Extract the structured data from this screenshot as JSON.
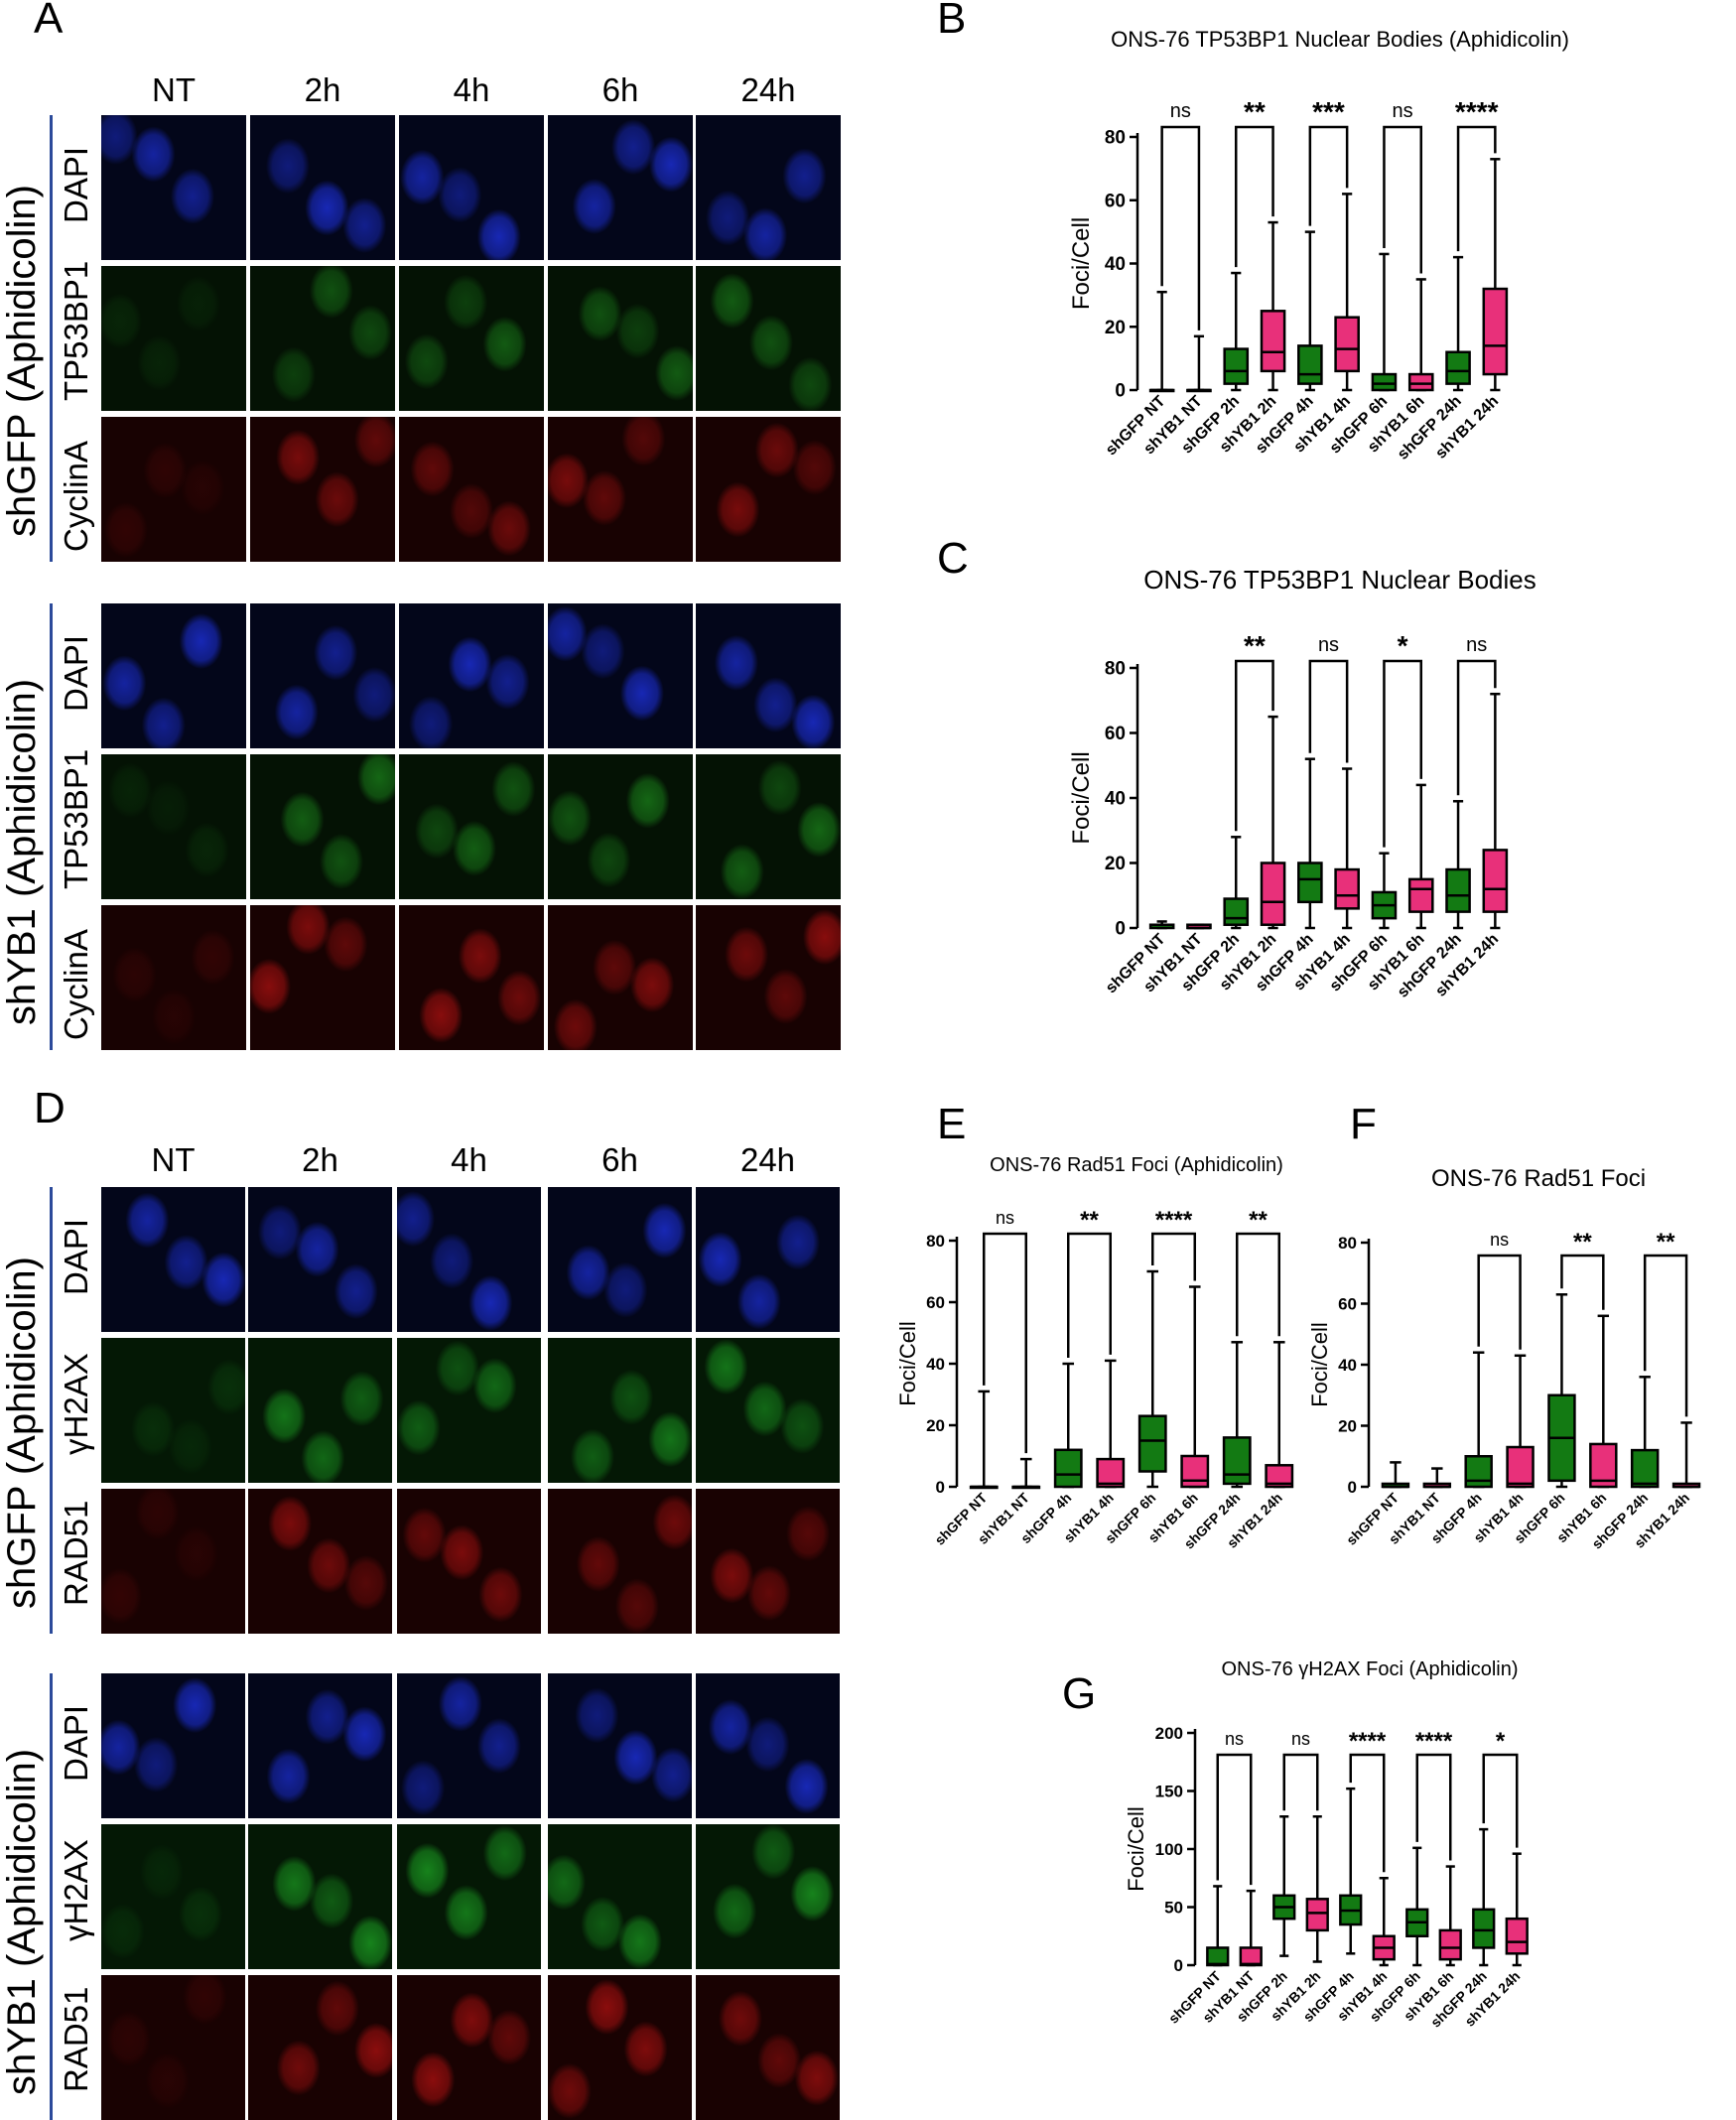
{
  "panel_letters": {
    "A": "A",
    "B": "B",
    "C": "C",
    "D": "D",
    "E": "E",
    "F": "F",
    "G": "G"
  },
  "microscopy": {
    "A": {
      "columns": [
        "NT",
        "2h",
        "4h",
        "6h",
        "24h"
      ],
      "groups": [
        {
          "label": "shGFP (Aphidicolin)",
          "rows": [
            "DAPI",
            "TP53BP1",
            "CyclinA"
          ]
        },
        {
          "label": "shYB1 (Aphidicolin)",
          "rows": [
            "DAPI",
            "TP53BP1",
            "CyclinA"
          ]
        }
      ]
    },
    "D": {
      "columns": [
        "NT",
        "2h",
        "4h",
        "6h",
        "24h"
      ],
      "groups": [
        {
          "label": "shGFP (Aphidicolin)",
          "rows": [
            "DAPI",
            "γH2AX",
            "RAD51"
          ]
        },
        {
          "label": "shYB1 (Aphidicolin)",
          "rows": [
            "DAPI",
            "γH2AX",
            "RAD51"
          ]
        }
      ]
    },
    "colors": {
      "DAPI": "#1c2fd6",
      "TP53BP1": "#1f9a1f",
      "CyclinA": "#cc1414",
      "γH2AX": "#22c42a",
      "RAD51": "#d11414"
    }
  },
  "colors": {
    "shGFP": "#137a13",
    "shYB1": "#e8307a"
  },
  "chart_data": [
    {
      "id": "B",
      "type": "box",
      "title": "ONS-76 TP53BP1 Nuclear Bodies (Aphidicolin)",
      "ylabel": "Foci/Cell",
      "ylim": [
        0,
        80
      ],
      "yticks": [
        0,
        20,
        40,
        60,
        80
      ],
      "categories": [
        "shGFP NT",
        "shYB1 NT",
        "shGFP 2h",
        "shYB1 2h",
        "shGFP 4h",
        "shYB1 4h",
        "shGFP 6h",
        "shYB1 6h",
        "shGFP 24h",
        "shYB1 24h"
      ],
      "boxes": [
        [
          0,
          0,
          0,
          0,
          31
        ],
        [
          0,
          0,
          0,
          0,
          17
        ],
        [
          0,
          2,
          6,
          13,
          37
        ],
        [
          0,
          6,
          12,
          25,
          53
        ],
        [
          0,
          2,
          5,
          14,
          50
        ],
        [
          0,
          6,
          13,
          23,
          62
        ],
        [
          0,
          0,
          2,
          5,
          43
        ],
        [
          0,
          0,
          2,
          5,
          35
        ],
        [
          0,
          2,
          6,
          12,
          42
        ],
        [
          0,
          5,
          14,
          32,
          73
        ]
      ],
      "comparisons": [
        {
          "pair": [
            0,
            1
          ],
          "label": "ns"
        },
        {
          "pair": [
            2,
            3
          ],
          "label": "**"
        },
        {
          "pair": [
            4,
            5
          ],
          "label": "***"
        },
        {
          "pair": [
            6,
            7
          ],
          "label": "ns"
        },
        {
          "pair": [
            8,
            9
          ],
          "label": "****"
        }
      ]
    },
    {
      "id": "C",
      "type": "box",
      "title": "ONS-76 TP53BP1 Nuclear Bodies",
      "ylabel": "Foci/Cell",
      "ylim": [
        0,
        80
      ],
      "yticks": [
        0,
        20,
        40,
        60,
        80
      ],
      "categories": [
        "shGFP NT",
        "shYB1 NT",
        "shGFP 2h",
        "shYB1 2h",
        "shGFP 4h",
        "shYB1 4h",
        "shGFP 6h",
        "shYB1 6h",
        "shGFP 24h",
        "shYB1 24h"
      ],
      "boxes": [
        [
          0,
          0,
          1,
          1,
          2
        ],
        [
          0,
          0,
          0,
          1,
          1
        ],
        [
          0,
          1,
          3,
          9,
          28
        ],
        [
          0,
          1,
          8,
          20,
          65
        ],
        [
          0,
          8,
          15,
          20,
          52
        ],
        [
          0,
          6,
          10,
          18,
          49
        ],
        [
          0,
          3,
          7,
          11,
          23
        ],
        [
          0,
          5,
          12,
          15,
          44
        ],
        [
          0,
          5,
          10,
          18,
          39
        ],
        [
          0,
          5,
          12,
          24,
          72
        ]
      ],
      "comparisons": [
        {
          "pair": [
            2,
            3
          ],
          "label": "**"
        },
        {
          "pair": [
            4,
            5
          ],
          "label": "ns"
        },
        {
          "pair": [
            6,
            7
          ],
          "label": "*"
        },
        {
          "pair": [
            8,
            9
          ],
          "label": "ns"
        }
      ]
    },
    {
      "id": "E",
      "type": "box",
      "title": "ONS-76 Rad51 Foci (Aphidicolin)",
      "ylabel": "Foci/Cell",
      "ylim": [
        0,
        80
      ],
      "yticks": [
        0,
        20,
        40,
        60,
        80
      ],
      "categories": [
        "shGFP NT",
        "shYB1 NT",
        "shGFP 4h",
        "shYB1 4h",
        "shGFP 6h",
        "shYB1 6h",
        "shGFP 24h",
        "shYB1 24h"
      ],
      "boxes": [
        [
          0,
          0,
          0,
          0,
          31
        ],
        [
          0,
          0,
          0,
          0,
          9
        ],
        [
          0,
          0,
          4,
          12,
          40
        ],
        [
          0,
          0,
          1,
          9,
          41
        ],
        [
          0,
          5,
          15,
          23,
          70
        ],
        [
          0,
          0,
          2,
          10,
          65
        ],
        [
          0,
          1,
          4,
          16,
          47
        ],
        [
          0,
          0,
          1,
          7,
          47
        ]
      ],
      "comparisons": [
        {
          "pair": [
            0,
            1
          ],
          "label": "ns"
        },
        {
          "pair": [
            2,
            3
          ],
          "label": "**"
        },
        {
          "pair": [
            4,
            5
          ],
          "label": "****"
        },
        {
          "pair": [
            6,
            7
          ],
          "label": "**"
        }
      ]
    },
    {
      "id": "F",
      "type": "box",
      "title": "ONS-76 Rad51 Foci",
      "ylabel": "Foci/Cell",
      "ylim": [
        0,
        80
      ],
      "yticks": [
        0,
        20,
        40,
        60,
        80
      ],
      "categories": [
        "shGFP NT",
        "shYB1 NT",
        "shGFP 4h",
        "shYB1 4h",
        "shGFP 6h",
        "shYB1 6h",
        "shGFP 24h",
        "shYB1 24h"
      ],
      "boxes": [
        [
          0,
          0,
          0,
          1,
          8
        ],
        [
          0,
          0,
          0,
          1,
          6
        ],
        [
          0,
          0,
          2,
          10,
          44
        ],
        [
          0,
          0,
          1,
          13,
          43
        ],
        [
          0,
          2,
          16,
          30,
          63
        ],
        [
          0,
          0,
          2,
          14,
          56
        ],
        [
          0,
          0,
          1,
          12,
          36
        ],
        [
          0,
          0,
          0,
          1,
          21
        ]
      ],
      "comparisons": [
        {
          "pair": [
            2,
            3
          ],
          "label": "ns"
        },
        {
          "pair": [
            4,
            5
          ],
          "label": "**"
        },
        {
          "pair": [
            6,
            7
          ],
          "label": "**"
        }
      ]
    },
    {
      "id": "G",
      "type": "box",
      "title": "ONS-76 γH2AX Foci (Aphidicolin)",
      "ylabel": "Foci/Cell",
      "ylim": [
        0,
        200
      ],
      "yticks": [
        0,
        50,
        100,
        150,
        200
      ],
      "categories": [
        "shGFP NT",
        "shYB1 NT",
        "shGFP 2h",
        "shYB1 2h",
        "shGFP 4h",
        "shYB1 4h",
        "shGFP 6h",
        "shYB1 6h",
        "shGFP 24h",
        "shYB1 24h"
      ],
      "boxes": [
        [
          0,
          0,
          1,
          15,
          68
        ],
        [
          0,
          0,
          1,
          15,
          64
        ],
        [
          8,
          40,
          50,
          60,
          128
        ],
        [
          3,
          30,
          45,
          57,
          128
        ],
        [
          10,
          35,
          47,
          60,
          152
        ],
        [
          0,
          5,
          15,
          25,
          75
        ],
        [
          0,
          25,
          37,
          48,
          101
        ],
        [
          0,
          5,
          15,
          30,
          85
        ],
        [
          0,
          15,
          30,
          48,
          117
        ],
        [
          0,
          10,
          20,
          40,
          96
        ]
      ],
      "comparisons": [
        {
          "pair": [
            0,
            1
          ],
          "label": "ns"
        },
        {
          "pair": [
            2,
            3
          ],
          "label": "ns"
        },
        {
          "pair": [
            4,
            5
          ],
          "label": "****"
        },
        {
          "pair": [
            6,
            7
          ],
          "label": "****"
        },
        {
          "pair": [
            8,
            9
          ],
          "label": "*"
        }
      ]
    }
  ]
}
